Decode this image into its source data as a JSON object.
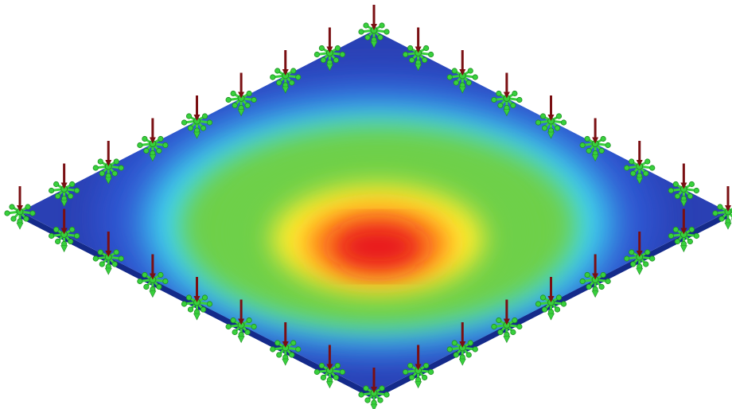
{
  "scene": {
    "description_visible_text": [],
    "plot_type": "fea-contour-plate",
    "colormap": [
      "#1c34a0",
      "#2f54d2",
      "#3fd8f2",
      "#6ed04a",
      "#ffee2e",
      "#ff8a1e",
      "#e8141c"
    ],
    "plate_colors": {
      "top_base": "#2a40b4",
      "edge_side": "#142a8a"
    },
    "constraint_color": "#38d03c",
    "constraint_dark": "#1f8f25",
    "load_arrow_color": "#7a0f12",
    "constraints_per_edge": 8
  }
}
